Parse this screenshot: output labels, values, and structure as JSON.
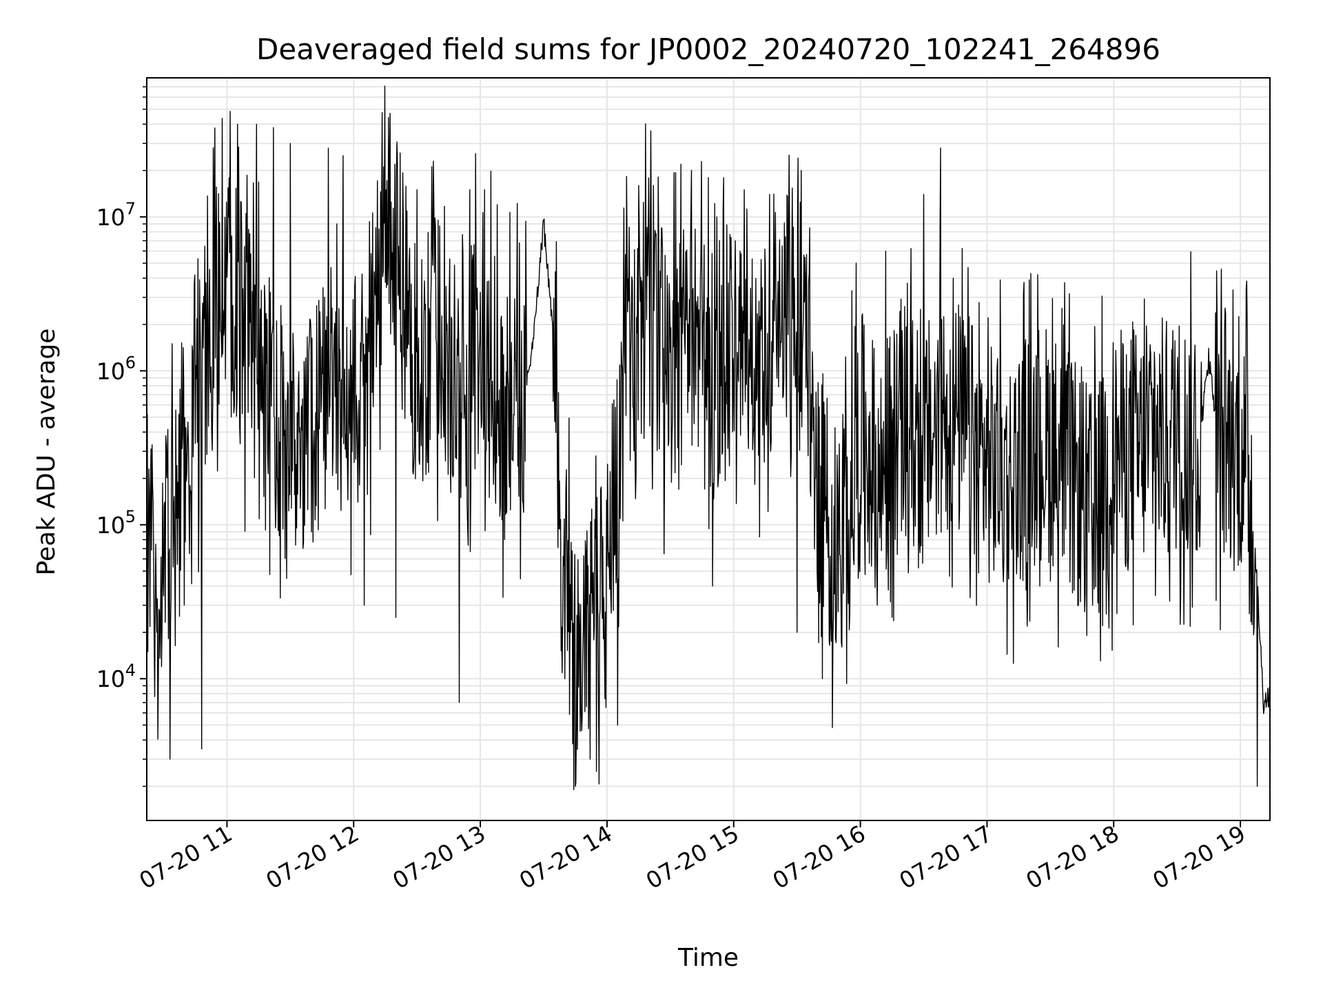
{
  "chart_data": {
    "type": "line",
    "title": "Deaveraged field sums for JP0002_20240720_102241_264896",
    "xlabel": "Time",
    "ylabel": "Peak ADU - average",
    "yscale": "log",
    "grid": true,
    "legend": "none",
    "line_color": "#000000",
    "grid_color": "#e6e6e6",
    "xlim": [
      "07-20 10:22",
      "07-20 19:14"
    ],
    "ylim": [
      1200,
      80000000
    ],
    "x_ticks": [
      "07-20 11",
      "07-20 12",
      "07-20 13",
      "07-20 14",
      "07-20 15",
      "07-20 16",
      "07-20 17",
      "07-20 18",
      "07-20 19"
    ],
    "y_ticks": [
      {
        "value": 10000,
        "base": "10",
        "exp": "4"
      },
      {
        "value": 100000,
        "base": "10",
        "exp": "5"
      },
      {
        "value": 1000000,
        "base": "10",
        "exp": "6"
      },
      {
        "value": 10000000,
        "base": "10",
        "exp": "7"
      }
    ],
    "series": [
      {
        "x": [
          "07-20 10:22",
          "07-20 10:30",
          "07-20 10:38",
          "07-20 10:45",
          "07-20 10:52",
          "07-20 11:00",
          "07-20 11:10",
          "07-20 11:20",
          "07-20 11:30",
          "07-20 11:40",
          "07-20 11:50",
          "07-20 12:00",
          "07-20 12:10",
          "07-20 12:15",
          "07-20 12:20",
          "07-20 12:30",
          "07-20 12:40",
          "07-20 12:50",
          "07-20 13:00",
          "07-20 13:10",
          "07-20 13:20",
          "07-20 13:25",
          "07-20 13:30",
          "07-20 13:35",
          "07-20 13:40",
          "07-20 13:45",
          "07-20 13:50",
          "07-20 14:00",
          "07-20 14:10",
          "07-20 14:20",
          "07-20 14:30",
          "07-20 14:40",
          "07-20 14:50",
          "07-20 15:00",
          "07-20 15:10",
          "07-20 15:20",
          "07-20 15:30",
          "07-20 15:40",
          "07-20 15:50",
          "07-20 16:00",
          "07-20 16:10",
          "07-20 16:20",
          "07-20 16:30",
          "07-20 16:40",
          "07-20 16:50",
          "07-20 17:00",
          "07-20 17:10",
          "07-20 17:20",
          "07-20 17:30",
          "07-20 17:40",
          "07-20 17:50",
          "07-20 18:00",
          "07-20 18:10",
          "07-20 18:20",
          "07-20 18:30",
          "07-20 18:40",
          "07-20 18:45",
          "07-20 18:50",
          "07-20 19:00",
          "07-20 19:05",
          "07-20 19:08",
          "07-20 19:11",
          "07-20 19:14"
        ],
        "y": [
          50000,
          60000,
          150000,
          280000,
          2500000,
          3500000,
          1500000,
          700000,
          300000,
          400000,
          900000,
          600000,
          2000000,
          15000000,
          6000000,
          800000,
          2000000,
          500000,
          2000000,
          600000,
          700000,
          1500000,
          9000000,
          1500000,
          40000,
          15000,
          20000,
          40000,
          1500000,
          2500000,
          900000,
          2000000,
          1000000,
          1500000,
          900000,
          2000000,
          5000000,
          200000,
          60000,
          400000,
          200000,
          500000,
          300000,
          600000,
          400000,
          250000,
          200000,
          300000,
          350000,
          200000,
          120000,
          300000,
          300000,
          350000,
          400000,
          300000,
          1200000,
          350000,
          300000,
          200000,
          40000,
          7000,
          8000
        ],
        "spike_x": [
          "07-20 10:34",
          "07-20 11:05",
          "07-20 11:14",
          "07-20 11:22",
          "07-20 11:30",
          "07-20 11:40",
          "07-20 11:48",
          "07-20 11:55",
          "07-20 12:17",
          "07-20 12:22",
          "07-20 12:30",
          "07-20 12:38",
          "07-20 12:55",
          "07-20 13:02",
          "07-20 13:08",
          "07-20 14:15",
          "07-20 14:22",
          "07-20 14:35",
          "07-20 14:40",
          "07-20 14:48",
          "07-20 14:52",
          "07-20 15:05",
          "07-20 15:17",
          "07-20 15:32",
          "07-20 15:58",
          "07-20 16:12",
          "07-20 16:30",
          "07-20 16:38",
          "07-20 16:44",
          "07-20 17:05",
          "07-20 17:22",
          "07-20 17:55",
          "07-20 18:10",
          "07-20 18:30",
          "07-20 18:45"
        ],
        "spike_y": [
          1500000,
          40000000,
          40000000,
          38000000,
          30000000,
          45000000,
          28000000,
          25000000,
          25000000,
          26000000,
          15000000,
          12000000,
          15000000,
          15000000,
          12000000,
          16000000,
          16000000,
          22000000,
          20000000,
          18000000,
          10000000,
          15000000,
          14000000,
          20000000,
          5000000,
          6000000,
          14000000,
          28000000,
          4000000,
          1200000,
          800000,
          900000,
          900000,
          700000,
          1400000
        ],
        "dip_x": [
          "07-20 10:33",
          "07-20 10:48",
          "07-20 11:40",
          "07-20 12:05",
          "07-20 12:20",
          "07-20 12:50",
          "07-20 13:40",
          "07-20 13:45",
          "07-20 13:52",
          "07-20 13:55",
          "07-20 14:05",
          "07-20 14:50",
          "07-20 15:30",
          "07-20 15:42",
          "07-20 16:08",
          "07-20 16:15",
          "07-20 16:55",
          "07-20 17:25",
          "07-20 17:50",
          "07-20 18:35",
          "07-20 19:08"
        ],
        "dip_y": [
          3000,
          3500,
          90000,
          30000,
          25000,
          7000,
          10000,
          2000,
          3000,
          2500,
          5000,
          40000,
          20000,
          10000,
          30000,
          25000,
          30000,
          40000,
          30000,
          70000,
          2000
        ]
      }
    ]
  }
}
